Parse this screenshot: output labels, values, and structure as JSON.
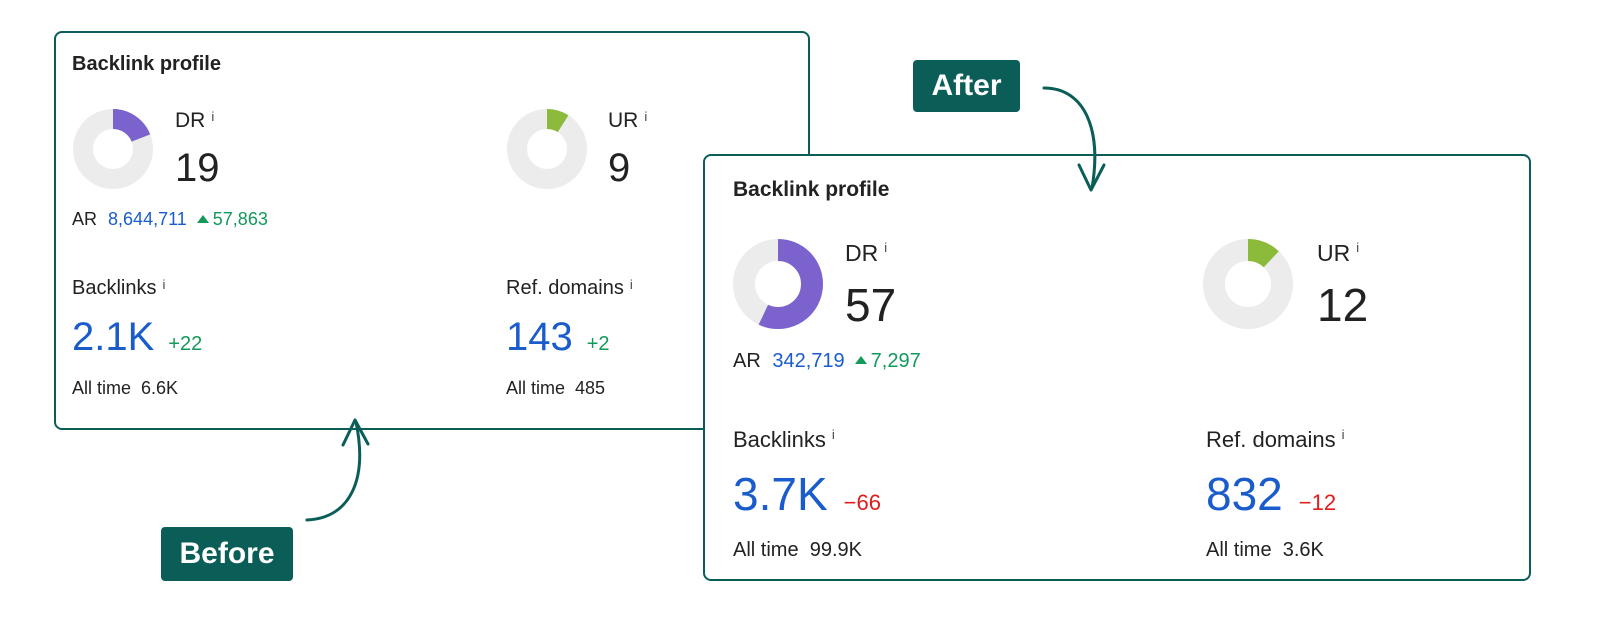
{
  "colors": {
    "accent": "#0b5e58",
    "dr": "#7c62cc",
    "ur": "#8cba3a",
    "track": "#ececec",
    "positive": "#139a5a",
    "negative": "#e01c1c",
    "value": "#1a5ccc"
  },
  "before": {
    "badge": "Before",
    "title": "Backlink profile",
    "dr": {
      "label": "DR",
      "info": "i",
      "value": "19",
      "fraction": 0.19
    },
    "ur": {
      "label": "UR",
      "info": "i",
      "value": "9",
      "fraction": 0.09
    },
    "ar": {
      "label": "AR",
      "value": "8,644,711",
      "change": "57,863"
    },
    "backlinks": {
      "label": "Backlinks",
      "info": "i",
      "value": "2.1K",
      "change": "+22",
      "all_time_label": "All time",
      "all_time": "6.6K"
    },
    "ref_domains": {
      "label": "Ref. domains",
      "info": "i",
      "value": "143",
      "change": "+2",
      "all_time_label": "All time",
      "all_time": "485"
    }
  },
  "after": {
    "badge": "After",
    "title": "Backlink profile",
    "dr": {
      "label": "DR",
      "info": "i",
      "value": "57",
      "fraction": 0.57
    },
    "ur": {
      "label": "UR",
      "info": "i",
      "value": "12",
      "fraction": 0.12
    },
    "ar": {
      "label": "AR",
      "value": "342,719",
      "change": "7,297"
    },
    "backlinks": {
      "label": "Backlinks",
      "info": "i",
      "value": "3.7K",
      "change": "−66",
      "all_time_label": "All time",
      "all_time": "99.9K"
    },
    "ref_domains": {
      "label": "Ref. domains",
      "info": "i",
      "value": "832",
      "change": "−12",
      "all_time_label": "All time",
      "all_time": "3.6K"
    }
  }
}
